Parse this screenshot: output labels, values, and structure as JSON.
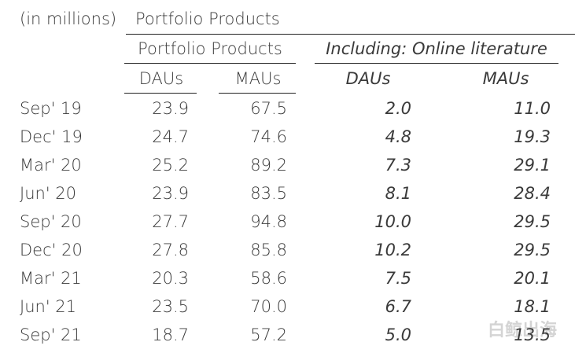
{
  "header": {
    "unit": "(in millions)",
    "title": "Portfolio Products"
  },
  "groups": [
    "Portfolio Products",
    "Including: Online literature"
  ],
  "columns": [
    "DAUs",
    "MAUs",
    "DAUs",
    "MAUs"
  ],
  "rows": [
    [
      "Sep' 19",
      "23.9",
      "67.5",
      "2.0",
      "11.0"
    ],
    [
      "Dec' 19",
      "24.7",
      "74.6",
      "4.8",
      "19.3"
    ],
    [
      "Mar' 20",
      "25.2",
      "89.2",
      "7.3",
      "29.1"
    ],
    [
      "Jun' 20",
      "23.9",
      "83.5",
      "8.1",
      "28.4"
    ],
    [
      "Sep' 20",
      "27.7",
      "94.8",
      "10.0",
      "29.5"
    ],
    [
      "Dec' 20",
      "27.8",
      "85.8",
      "10.2",
      "29.5"
    ],
    [
      "Mar' 21",
      "20.3",
      "58.6",
      "7.5",
      "20.1"
    ],
    [
      "Jun' 21",
      "23.5",
      "70.0",
      "6.7",
      "18.1"
    ],
    [
      "Sep' 21",
      "18.7",
      "57.2",
      "5.0",
      "13.5"
    ]
  ],
  "watermark": "白鲸出海"
}
